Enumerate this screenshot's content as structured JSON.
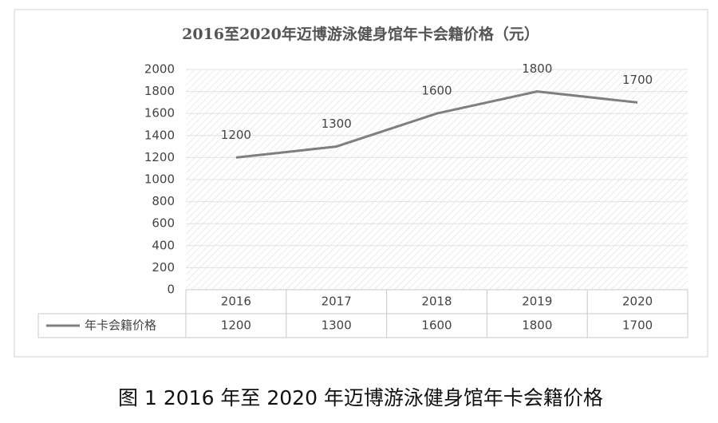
{
  "chart_data": {
    "type": "line",
    "title": "2016至2020年迈博游泳健身馆年卡会籍价格（元）",
    "categories": [
      "2016",
      "2017",
      "2018",
      "2019",
      "2020"
    ],
    "series": [
      {
        "name": "年卡会籍价格",
        "color": "#7f7f7f",
        "values": [
          1200,
          1300,
          1600,
          1800,
          1700
        ]
      }
    ],
    "ylim": [
      0,
      2000
    ],
    "yticks": [
      0,
      200,
      400,
      600,
      800,
      1000,
      1200,
      1400,
      1600,
      1800,
      2000
    ],
    "grid": true,
    "data_table": true
  },
  "caption": "图 1  2016 年至 2020 年迈博游泳健身馆年卡会籍价格"
}
